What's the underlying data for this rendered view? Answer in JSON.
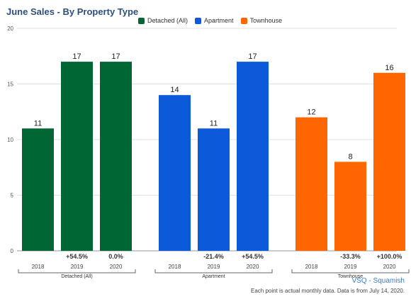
{
  "chart_data": {
    "type": "bar",
    "title": "June Sales - By Property Type",
    "ylim": [
      0,
      20
    ],
    "yticks": [
      0,
      5,
      10,
      15,
      20
    ],
    "grid": true,
    "legend_position": "top-center",
    "series": [
      {
        "name": "Detached (All)",
        "color": "#006633",
        "categories": [
          "2018",
          "2019",
          "2020"
        ],
        "values": [
          11,
          17,
          17
        ],
        "changes": [
          "",
          "+54.5%",
          "0.0%"
        ]
      },
      {
        "name": "Apartment",
        "color": "#0b5ad9",
        "categories": [
          "2018",
          "2019",
          "2020"
        ],
        "values": [
          14,
          11,
          17
        ],
        "changes": [
          "",
          "-21.4%",
          "+54.5%"
        ]
      },
      {
        "name": "Townhouse",
        "color": "#ff6600",
        "categories": [
          "2018",
          "2019",
          "2020"
        ],
        "values": [
          12,
          8,
          16
        ],
        "changes": [
          "",
          "-33.3%",
          "+100.0%"
        ]
      }
    ]
  },
  "footer": {
    "brand": "VSQ - Squamish",
    "note": "Each point is actual monthly data. Data is from July 14, 2020."
  }
}
